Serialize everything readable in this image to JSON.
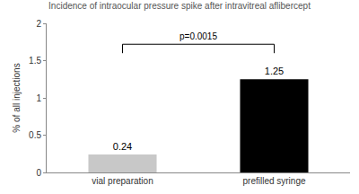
{
  "chart_data": {
    "type": "bar",
    "title": "Incidence of intraocular pressure spike after intravitreal aflibercept",
    "y_label": "% of all injections",
    "categories": [
      "vial preparation",
      "prefilled syringe"
    ],
    "values": [
      0.24,
      1.25
    ],
    "colors": [
      "#c8c8c8",
      "#000000"
    ],
    "ylim": [
      0,
      2
    ],
    "yticks": [
      0,
      0.5,
      1,
      1.5,
      2
    ],
    "grid": false,
    "data_labels": true,
    "annotations": [
      {
        "text": "p=0.0015"
      }
    ]
  }
}
